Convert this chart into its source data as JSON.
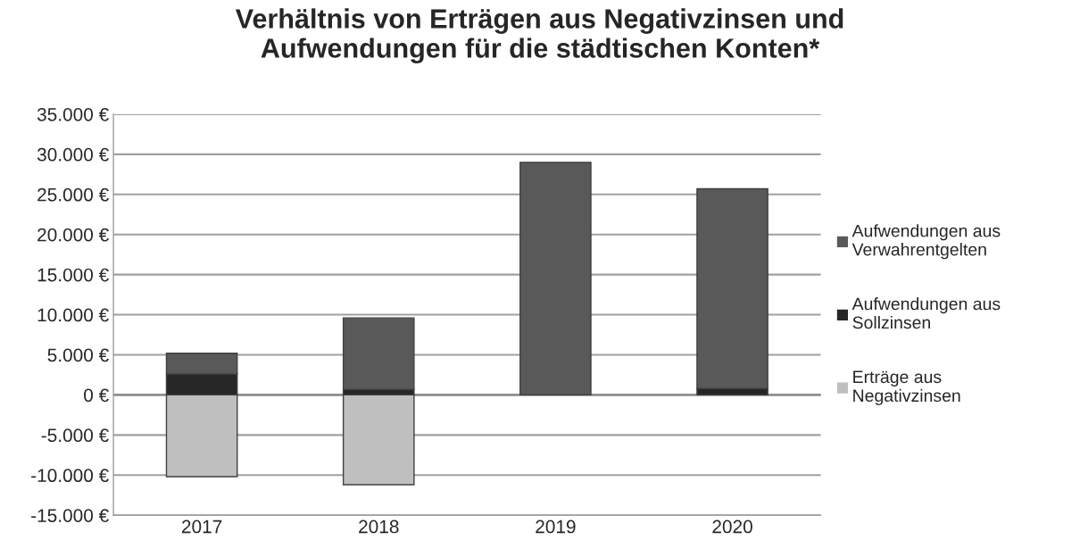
{
  "chart_data": {
    "type": "bar",
    "title": "Verhältnis von Erträgen aus Negativzinsen und\nAufwendungen für die städtischen Konten*",
    "categories": [
      "2017",
      "2018",
      "2019",
      "2020"
    ],
    "stacked": true,
    "series": [
      {
        "name": "Erträge aus\nNegativzinsen",
        "color": "#bfbfbf",
        "values": [
          -10200,
          -11200,
          0,
          0
        ]
      },
      {
        "name": "Aufwendungen aus\nSollzinsen",
        "color": "#262626",
        "values": [
          2600,
          700,
          0,
          800
        ]
      },
      {
        "name": "Aufwendungen aus\nVerwahrentgelten",
        "color": "#595959",
        "values": [
          2600,
          8900,
          29000,
          24900
        ]
      }
    ],
    "ylim": [
      -15000,
      35000
    ],
    "yticks": [
      {
        "value": -15000,
        "label": "-15.000 €"
      },
      {
        "value": -10000,
        "label": "-10.000 €"
      },
      {
        "value": -5000,
        "label": "-5.000 €"
      },
      {
        "value": 0,
        "label": "0 €"
      },
      {
        "value": 5000,
        "label": "5.000 €"
      },
      {
        "value": 10000,
        "label": "10.000 €"
      },
      {
        "value": 15000,
        "label": "15.000 €"
      },
      {
        "value": 20000,
        "label": "20.000 €"
      },
      {
        "value": 25000,
        "label": "25.000 €"
      },
      {
        "value": 30000,
        "label": "30.000 €"
      },
      {
        "value": 35000,
        "label": "35.000 €"
      }
    ],
    "grid": "y",
    "legend": "right"
  }
}
